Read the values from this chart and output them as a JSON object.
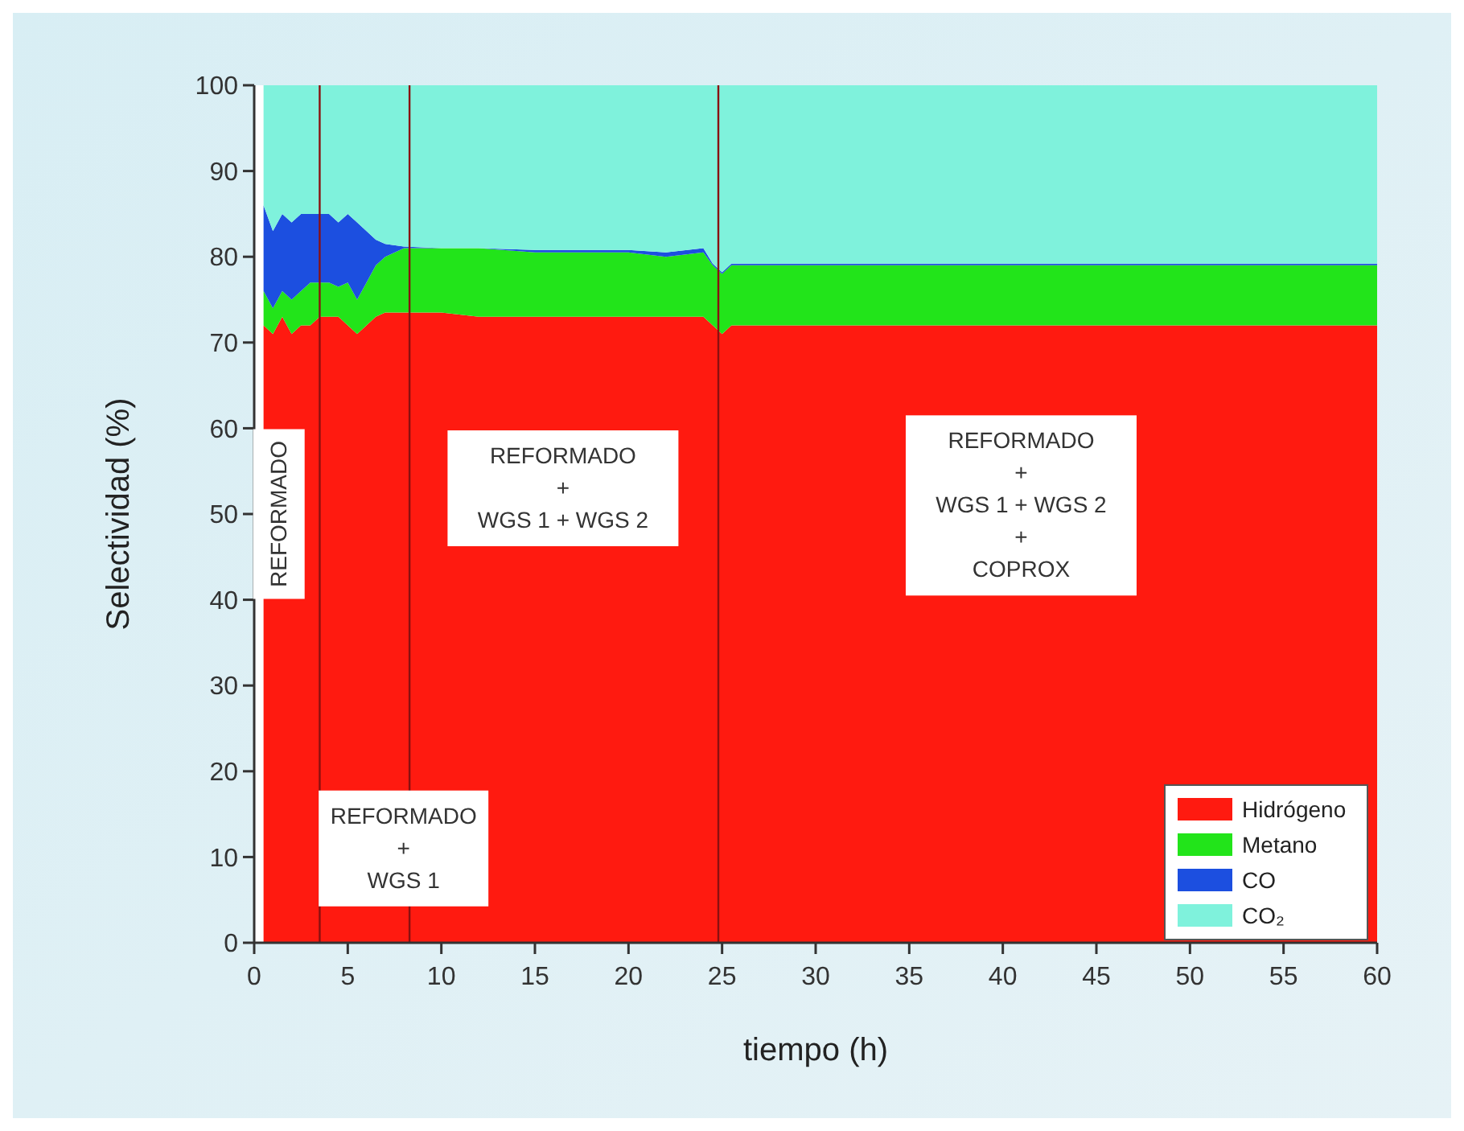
{
  "chart_data": {
    "type": "area",
    "stacked": true,
    "xlabel": "tiempo (h)",
    "ylabel": "Selectividad (%)",
    "x": [
      0.5,
      1,
      1.5,
      2,
      2.5,
      3,
      3.5,
      4,
      4.5,
      5,
      5.5,
      6,
      6.5,
      7,
      8,
      10,
      12,
      15,
      18,
      20,
      22,
      24,
      24.5,
      25,
      25.5,
      26,
      30,
      40,
      50,
      60
    ],
    "series": [
      {
        "name": "Hidrógeno",
        "color": "#ff1a10",
        "values": [
          72,
          71,
          73,
          71,
          72,
          72,
          73,
          73,
          73,
          72,
          71,
          72,
          73,
          73.5,
          73.5,
          73.5,
          73,
          73,
          73,
          73,
          73,
          73,
          72,
          71,
          72,
          72,
          72,
          72,
          72,
          72
        ]
      },
      {
        "name": "Metano",
        "color": "#22e41a",
        "values": [
          4,
          3,
          3,
          4,
          4,
          5,
          4,
          4,
          3.5,
          5,
          4,
          5,
          6,
          6.5,
          7.5,
          7.5,
          8,
          7.5,
          7.5,
          7.5,
          7,
          7.5,
          7,
          7,
          7,
          7,
          7,
          7,
          7,
          7
        ]
      },
      {
        "name": "CO",
        "color": "#1c4fe0",
        "values": [
          10,
          9,
          9,
          9,
          9,
          8,
          8,
          8,
          7.5,
          8,
          9,
          6,
          3,
          1.5,
          0.2,
          0,
          0,
          0.3,
          0.3,
          0.3,
          0.5,
          0.5,
          0.2,
          0.2,
          0.2,
          0.2,
          0.2,
          0.2,
          0.2,
          0.2
        ]
      },
      {
        "name": "CO₂",
        "color": "#7ff2dc",
        "values": [
          14,
          17,
          15,
          16,
          15,
          15,
          15,
          15,
          16,
          15,
          16,
          17,
          18,
          18.5,
          18.8,
          19,
          19,
          19.2,
          19.2,
          19.2,
          19.5,
          19,
          20.8,
          21.8,
          20.8,
          20.8,
          20.8,
          20.8,
          20.8,
          20.8
        ]
      }
    ],
    "xlim": [
      0,
      60
    ],
    "xticks": [
      0,
      5,
      10,
      15,
      20,
      25,
      30,
      35,
      40,
      45,
      50,
      55,
      60
    ],
    "ylim": [
      0,
      100
    ],
    "yticks": [
      0,
      10,
      20,
      30,
      40,
      50,
      60,
      70,
      80,
      90,
      100
    ],
    "ref_lines": [
      {
        "axis": "x",
        "value": 3.5,
        "color": "#8a1010"
      },
      {
        "axis": "x",
        "value": 8.3,
        "color": "#8a1010"
      },
      {
        "axis": "x",
        "value": 24.8,
        "color": "#8a1010"
      }
    ],
    "annotations": [
      "REFORMADO",
      "REFORMADO\n+\nWGS 1",
      "REFORMADO\n+\nWGS 1 + WGS 2",
      "REFORMADO\n+\nWGS 1 + WGS 2\n+\nCOPROX"
    ],
    "legend": "bottom right",
    "grid": false
  }
}
